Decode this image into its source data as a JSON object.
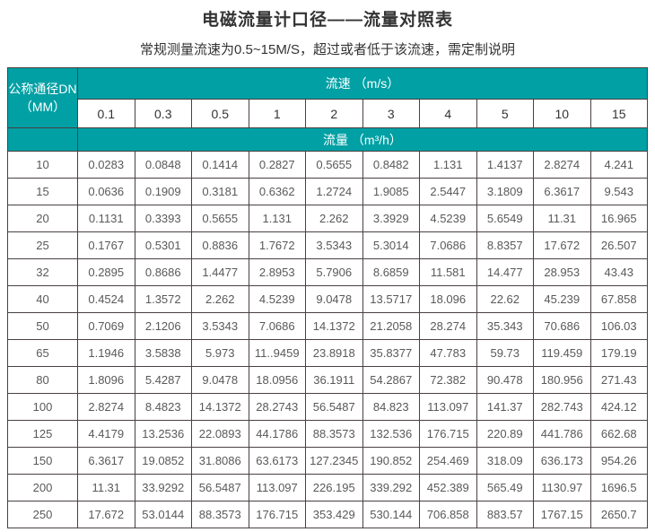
{
  "page": {
    "title": "电磁流量计口径——流量对照表",
    "subtitle": "常规测量流速为0.5~15M/S，超过或者低于该流速，需定制说明"
  },
  "table": {
    "corner_line1": "公称通径DN",
    "corner_line2": "（MM）",
    "speed_header": "流速 （m/s）",
    "flow_header": "流量 （m³/h）",
    "speeds": [
      "0.1",
      "0.3",
      "0.5",
      "1",
      "2",
      "3",
      "4",
      "5",
      "10",
      "15"
    ],
    "rows": [
      {
        "dn": "10",
        "values": [
          "0.0283",
          "0.0848",
          "0.1414",
          "0.2827",
          "0.5655",
          "0.8482",
          "1.131",
          "1.4137",
          "2.8274",
          "4.241"
        ]
      },
      {
        "dn": "15",
        "values": [
          "0.0636",
          "0.1909",
          "0.3181",
          "0.6362",
          "1.2724",
          "1.9085",
          "2.5447",
          "3.1809",
          "6.3617",
          "9.543"
        ]
      },
      {
        "dn": "20",
        "values": [
          "0.1131",
          "0.3393",
          "0.5655",
          "1.131",
          "2.262",
          "3.3929",
          "4.5239",
          "5.6549",
          "11.31",
          "16.965"
        ]
      },
      {
        "dn": "25",
        "values": [
          "0.1767",
          "0.5301",
          "0.8836",
          "1.7672",
          "3.5343",
          "5.3014",
          "7.0686",
          "8.8357",
          "17.672",
          "26.507"
        ]
      },
      {
        "dn": "32",
        "values": [
          "0.2895",
          "0.8686",
          "1.4477",
          "2.8953",
          "5.7906",
          "8.6859",
          "11.581",
          "14.477",
          "28.953",
          "43.43"
        ]
      },
      {
        "dn": "40",
        "values": [
          "0.4524",
          "1.3572",
          "2.262",
          "4.5239",
          "9.0478",
          "13.5717",
          "18.096",
          "22.62",
          "45.239",
          "67.858"
        ]
      },
      {
        "dn": "50",
        "values": [
          "0.7069",
          "2.1206",
          "3.5343",
          "7.0686",
          "14.1372",
          "21.2058",
          "28.274",
          "35.343",
          "70.686",
          "106.03"
        ]
      },
      {
        "dn": "65",
        "values": [
          "1.1946",
          "3.5838",
          "5.973",
          "11..9459",
          "23.8918",
          "35.8377",
          "47.783",
          "59.73",
          "119.459",
          "179.19"
        ]
      },
      {
        "dn": "80",
        "values": [
          "1.8096",
          "5.4287",
          "9.0478",
          "18.0956",
          "36.1911",
          "54.2867",
          "72.382",
          "90.478",
          "180.956",
          "271.43"
        ]
      },
      {
        "dn": "100",
        "values": [
          "2.8274",
          "8.4823",
          "14.1372",
          "28.2743",
          "56.5487",
          "84.823",
          "113.097",
          "141.37",
          "282.743",
          "424.12"
        ]
      },
      {
        "dn": "125",
        "values": [
          "4.4179",
          "13.2536",
          "22.0893",
          "44.1786",
          "88.3573",
          "132.536",
          "176.715",
          "220.89",
          "441.786",
          "662.68"
        ]
      },
      {
        "dn": "150",
        "values": [
          "6.3617",
          "19.0852",
          "31.8086",
          "63.6173",
          "127.2345",
          "190.852",
          "254.469",
          "318.09",
          "636.173",
          "954.26"
        ]
      },
      {
        "dn": "200",
        "values": [
          "11.31",
          "33.9292",
          "56.5487",
          "113.097",
          "226.195",
          "339.292",
          "452.389",
          "565.49",
          "1130.97",
          "1696.5"
        ]
      },
      {
        "dn": "250",
        "values": [
          "17.672",
          "53.0144",
          "88.3573",
          "176.715",
          "353.429",
          "530.144",
          "706.858",
          "883.57",
          "1767.15",
          "2650.7"
        ]
      }
    ]
  },
  "colors": {
    "header_teal": "#00a0a4",
    "border": "#4a4040",
    "data_text": "#595959",
    "title_text": "#333333"
  }
}
